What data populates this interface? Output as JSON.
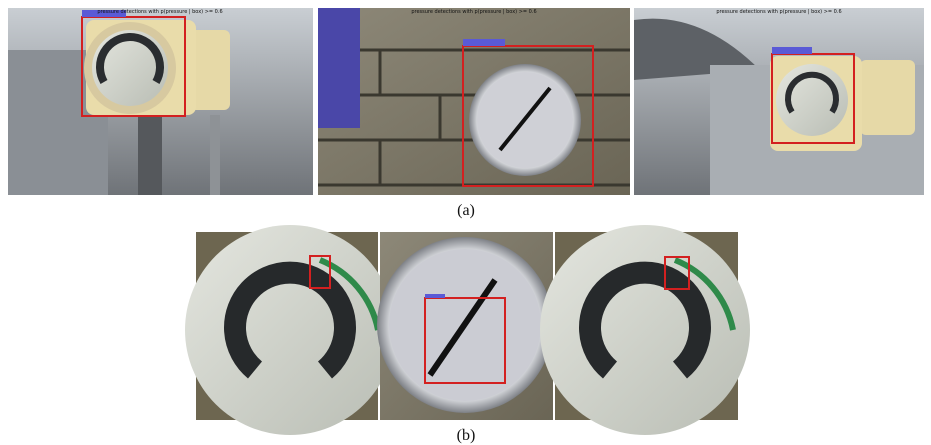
{
  "panels_a": [
    {
      "title": "pressure detections with p(pressure | box) >= 0.6"
    },
    {
      "title": "pressure detections with p(pressure | box) >= 0.6"
    },
    {
      "title": "pressure detections with p(pressure | box) >= 0.6"
    }
  ],
  "captions": {
    "a": "(a)",
    "b": "(b)"
  }
}
